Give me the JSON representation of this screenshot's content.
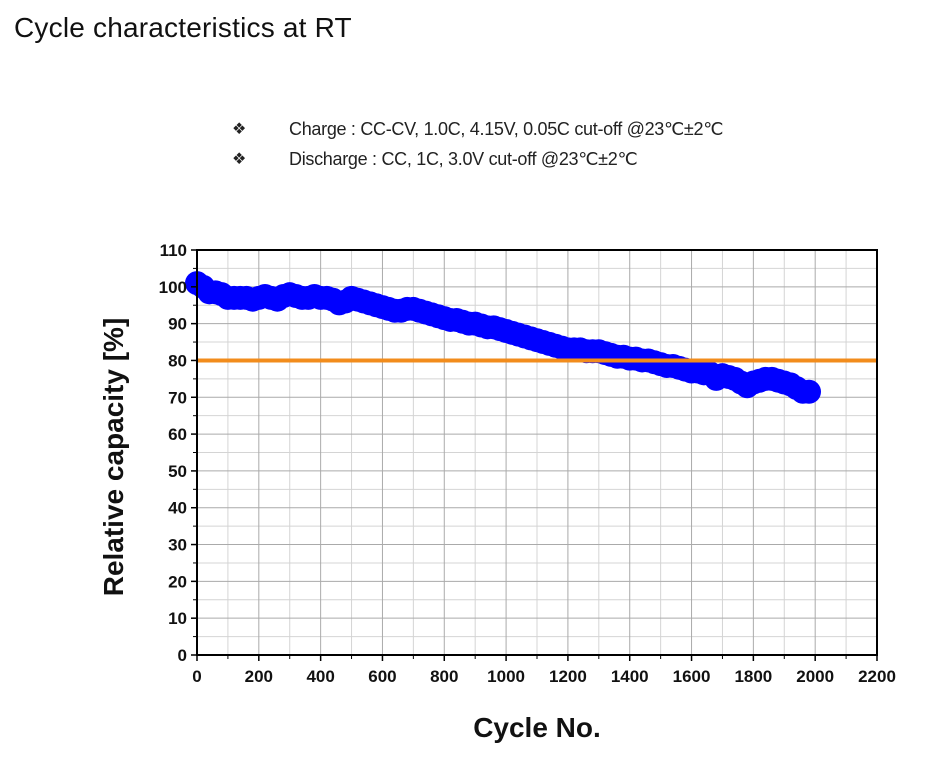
{
  "page": {
    "title": "Cycle characteristics at RT"
  },
  "notes": [
    {
      "icon": "diamond-bullet-icon",
      "symbol": "❖",
      "text": "Charge : CC-CV, 1.0C, 4.15V, 0.05C cut-off @23℃±2℃"
    },
    {
      "icon": "diamond-bullet-icon",
      "symbol": "❖",
      "text": "Discharge : CC, 1C, 3.0V cut-off @23℃±2℃"
    }
  ],
  "chart_data": {
    "type": "scatter",
    "title": "",
    "xlabel": "Cycle No.",
    "ylabel": "Relative capacity [%]",
    "xlim": [
      0,
      2200
    ],
    "ylim": [
      0,
      110
    ],
    "xticks": [
      0,
      200,
      400,
      600,
      800,
      1000,
      1200,
      1400,
      1600,
      1800,
      2000,
      2200
    ],
    "yticks": [
      0,
      10,
      20,
      30,
      40,
      50,
      60,
      70,
      80,
      90,
      100,
      110
    ],
    "grid": true,
    "legend": "none",
    "colors": {
      "series": "#0000ff",
      "reference": "#f28c1c",
      "grid": "#aaaaaa"
    },
    "reference_line": {
      "y": 80
    },
    "series": [
      {
        "x": [
          0,
          20,
          40,
          60,
          80,
          100,
          120,
          140,
          160,
          180,
          200,
          220,
          240,
          260,
          280,
          300,
          320,
          340,
          360,
          380,
          400,
          420,
          440,
          460,
          480,
          500,
          520,
          540,
          560,
          580,
          600,
          620,
          640,
          660,
          680,
          700,
          720,
          740,
          760,
          780,
          800,
          820,
          840,
          860,
          880,
          900,
          920,
          940,
          960,
          980,
          1000,
          1020,
          1040,
          1060,
          1080,
          1100,
          1120,
          1140,
          1160,
          1180,
          1200,
          1220,
          1240,
          1260,
          1280,
          1300,
          1320,
          1340,
          1360,
          1380,
          1400,
          1420,
          1440,
          1460,
          1480,
          1500,
          1520,
          1540,
          1560,
          1580,
          1600,
          1620,
          1640,
          1660,
          1680,
          1700,
          1720,
          1740,
          1760,
          1780,
          1800,
          1820,
          1840,
          1860,
          1880,
          1900,
          1920,
          1940,
          1960,
          1980
        ],
        "values": [
          101,
          100,
          98.5,
          98.5,
          98,
          97,
          97,
          97,
          97,
          96.5,
          97,
          97.5,
          97,
          96.5,
          97.5,
          98,
          97.5,
          97,
          97,
          97.5,
          97,
          97,
          96.5,
          95.5,
          96,
          97,
          96.5,
          96,
          95.5,
          95,
          94.5,
          94,
          93.5,
          93.5,
          94,
          94,
          93.5,
          93,
          92.5,
          92,
          91.5,
          91,
          91,
          90.5,
          90,
          90,
          89.5,
          89,
          89,
          88.5,
          88,
          87.5,
          87,
          86.5,
          86,
          85.5,
          85,
          84.5,
          84,
          83.5,
          83,
          83,
          83,
          82.5,
          82.5,
          82.5,
          82,
          81.5,
          81,
          81,
          80.5,
          80.5,
          80,
          80,
          79.5,
          79,
          78.5,
          78.5,
          78,
          77.5,
          77,
          77,
          76.5,
          76.5,
          75,
          76,
          75.5,
          75,
          74,
          73,
          74,
          74.5,
          75,
          75,
          74.5,
          74,
          73.5,
          72.5,
          71.5,
          71.5
        ]
      }
    ]
  }
}
